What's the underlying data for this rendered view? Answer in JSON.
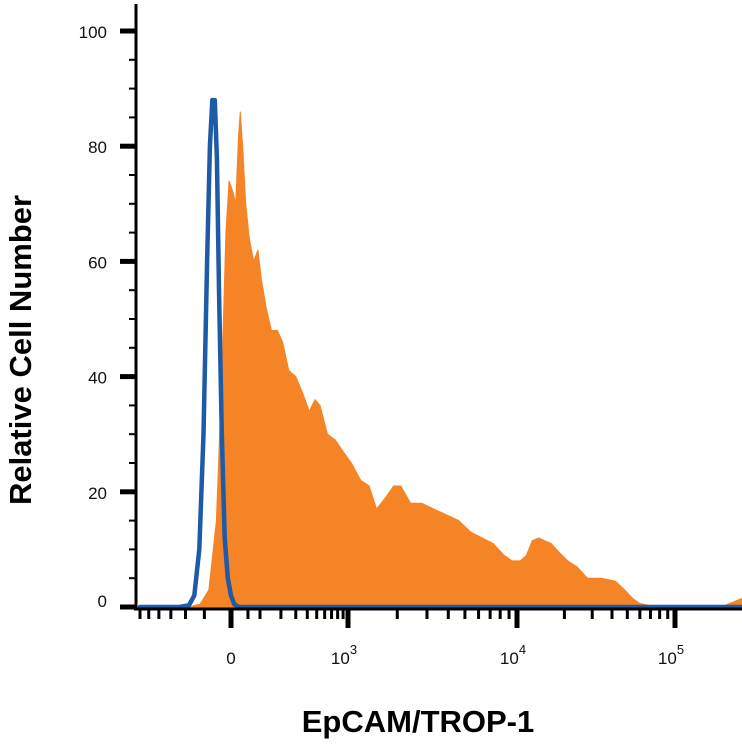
{
  "chart_data": {
    "type": "area",
    "title": "",
    "xlabel": "EpCAM/TROP-1",
    "ylabel": "Relative Cell Number",
    "x_scale": "biexponential",
    "xlim": [
      -300,
      180000
    ],
    "ylim": [
      0,
      100
    ],
    "grid": false,
    "legend": "none",
    "x_ticks": [
      {
        "value": 0,
        "base": "0",
        "exp": ""
      },
      {
        "value": 1000,
        "base": "10",
        "exp": "3"
      },
      {
        "value": 10000,
        "base": "10",
        "exp": "4"
      },
      {
        "value": 100000,
        "base": "10",
        "exp": "5"
      }
    ],
    "y_ticks": [
      {
        "value": 0,
        "label": "0"
      },
      {
        "value": 20,
        "label": "20"
      },
      {
        "value": 40,
        "label": "40"
      },
      {
        "value": 60,
        "label": "60"
      },
      {
        "value": 80,
        "label": "80"
      },
      {
        "value": 100,
        "label": "100"
      }
    ],
    "series": [
      {
        "color": "#f58426",
        "style": "filled",
        "points": [
          [
            -300,
            0
          ],
          [
            -90,
            0
          ],
          [
            -60,
            0.5
          ],
          [
            -40,
            3
          ],
          [
            -25,
            15
          ],
          [
            -15,
            40
          ],
          [
            -8,
            65
          ],
          [
            -3,
            74
          ],
          [
            5,
            72
          ],
          [
            12,
            70
          ],
          [
            20,
            82
          ],
          [
            25,
            86
          ],
          [
            32,
            80
          ],
          [
            42,
            70
          ],
          [
            55,
            64
          ],
          [
            72,
            60
          ],
          [
            90,
            62
          ],
          [
            105,
            57
          ],
          [
            125,
            52
          ],
          [
            150,
            48
          ],
          [
            180,
            48
          ],
          [
            210,
            46
          ],
          [
            250,
            41
          ],
          [
            300,
            40
          ],
          [
            360,
            37
          ],
          [
            420,
            34
          ],
          [
            480,
            36
          ],
          [
            540,
            35
          ],
          [
            640,
            30
          ],
          [
            760,
            29
          ],
          [
            900,
            27
          ],
          [
            1050,
            25
          ],
          [
            1200,
            22
          ],
          [
            1350,
            21
          ],
          [
            1500,
            17
          ],
          [
            1700,
            19
          ],
          [
            1900,
            21
          ],
          [
            2100,
            21
          ],
          [
            2400,
            18
          ],
          [
            2800,
            18
          ],
          [
            3300,
            17
          ],
          [
            3900,
            16
          ],
          [
            4600,
            15
          ],
          [
            5400,
            13
          ],
          [
            6300,
            12
          ],
          [
            7300,
            11
          ],
          [
            8400,
            9
          ],
          [
            9400,
            8
          ],
          [
            10500,
            8
          ],
          [
            11500,
            9
          ],
          [
            12500,
            11.5
          ],
          [
            13800,
            12
          ],
          [
            15000,
            11.5
          ],
          [
            16500,
            11
          ],
          [
            18500,
            9.5
          ],
          [
            21000,
            8
          ],
          [
            24000,
            7
          ],
          [
            28000,
            5
          ],
          [
            34000,
            5
          ],
          [
            42000,
            4.5
          ],
          [
            48000,
            3
          ],
          [
            54000,
            1.5
          ],
          [
            60000,
            0.6
          ],
          [
            68000,
            0.3
          ],
          [
            85000,
            0
          ],
          [
            150000,
            0
          ],
          [
            165000,
            0.8
          ],
          [
            180000,
            1.5
          ]
        ]
      },
      {
        "color": "#1d5aa8",
        "style": "line",
        "points": [
          [
            -300,
            0
          ],
          [
            -120,
            0
          ],
          [
            -90,
            0.3
          ],
          [
            -75,
            2
          ],
          [
            -62,
            10
          ],
          [
            -52,
            30
          ],
          [
            -44,
            60
          ],
          [
            -38,
            80
          ],
          [
            -33,
            88
          ],
          [
            -28,
            88
          ],
          [
            -24,
            78
          ],
          [
            -20,
            55
          ],
          [
            -15,
            30
          ],
          [
            -10,
            12
          ],
          [
            -5,
            5
          ],
          [
            0,
            2
          ],
          [
            8,
            0.5
          ],
          [
            20,
            0
          ],
          [
            180000,
            0
          ]
        ]
      }
    ]
  }
}
